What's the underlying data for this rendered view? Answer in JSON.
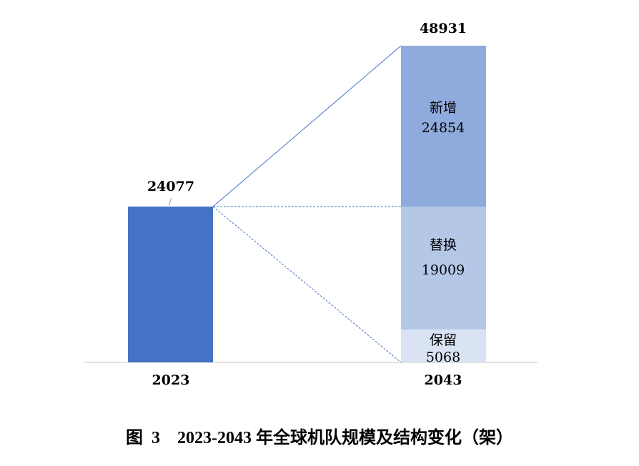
{
  "chart_data": {
    "type": "bar",
    "subtype": "stacked-breakdown",
    "title": "图 3  2023-2043 年全球机队规模及结构变化（架）",
    "title_parts": {
      "figure": "图",
      "number": "3",
      "text": "2023-2043 年全球机队规模及结构变化（架）"
    },
    "categories": [
      "2023",
      "2043"
    ],
    "totals": [
      24077,
      48931
    ],
    "total_labels": [
      "24077",
      "48931"
    ],
    "bar_2023": {
      "value": 24077,
      "color": "#4472C4"
    },
    "segments_2043": [
      {
        "name": "保留",
        "value": 5068,
        "label": "5068",
        "color": "#DAE3F3"
      },
      {
        "name": "替换",
        "value": 19009,
        "label": "19009",
        "color": "#B4C7E7"
      },
      {
        "name": "新增",
        "value": 24854,
        "label": "24854",
        "color": "#8FAADC"
      }
    ],
    "ylim": [
      0,
      48931
    ],
    "grid": false,
    "connector_color": "#4472C4"
  }
}
